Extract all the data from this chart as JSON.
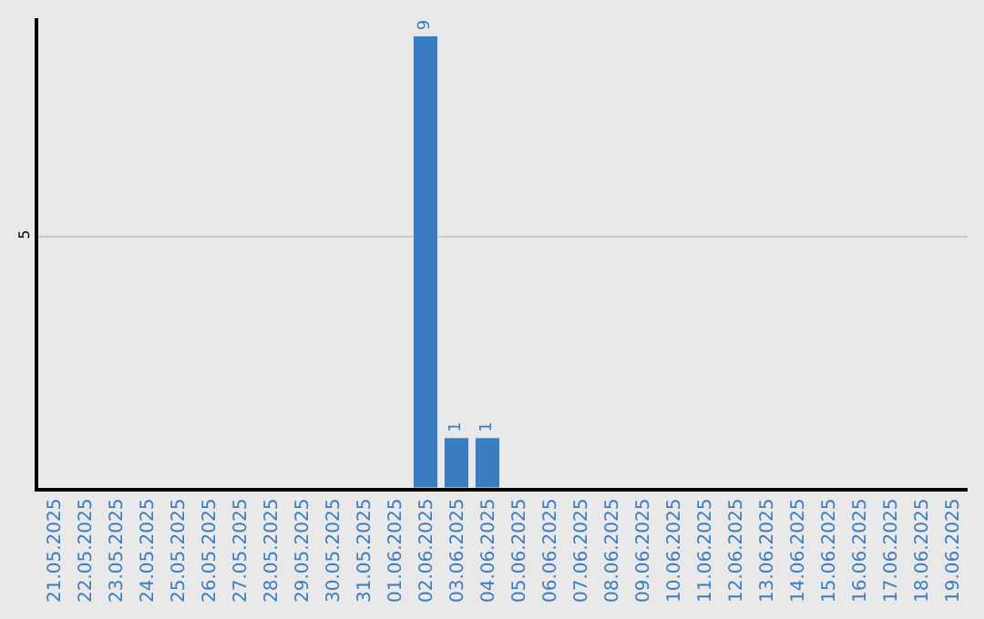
{
  "chart_data": {
    "type": "bar",
    "categories": [
      "21.05.2025",
      "22.05.2025",
      "23.05.2025",
      "24.05.2025",
      "25.05.2025",
      "26.05.2025",
      "27.05.2025",
      "28.05.2025",
      "29.05.2025",
      "30.05.2025",
      "31.05.2025",
      "01.06.2025",
      "02.06.2025",
      "03.06.2025",
      "04.06.2025",
      "05.06.2025",
      "06.06.2025",
      "07.06.2025",
      "08.06.2025",
      "09.06.2025",
      "10.06.2025",
      "11.06.2025",
      "12.06.2025",
      "13.06.2025",
      "14.06.2025",
      "15.06.2025",
      "16.06.2025",
      "17.06.2025",
      "18.06.2025",
      "19.06.2025"
    ],
    "values": [
      null,
      null,
      null,
      null,
      null,
      null,
      null,
      null,
      null,
      null,
      null,
      null,
      9,
      1,
      1,
      null,
      null,
      null,
      null,
      null,
      null,
      null,
      null,
      null,
      null,
      null,
      null,
      null,
      null,
      null
    ],
    "value_labels": [
      null,
      null,
      null,
      null,
      null,
      null,
      null,
      null,
      null,
      null,
      null,
      null,
      "9",
      "1",
      "1",
      null,
      null,
      null,
      null,
      null,
      null,
      null,
      null,
      null,
      null,
      null,
      null,
      null,
      null,
      null
    ],
    "color": "#3a7dc0",
    "ylim": [
      0,
      9.35
    ],
    "yticks": [
      5
    ],
    "grid": "y",
    "legend": false
  }
}
